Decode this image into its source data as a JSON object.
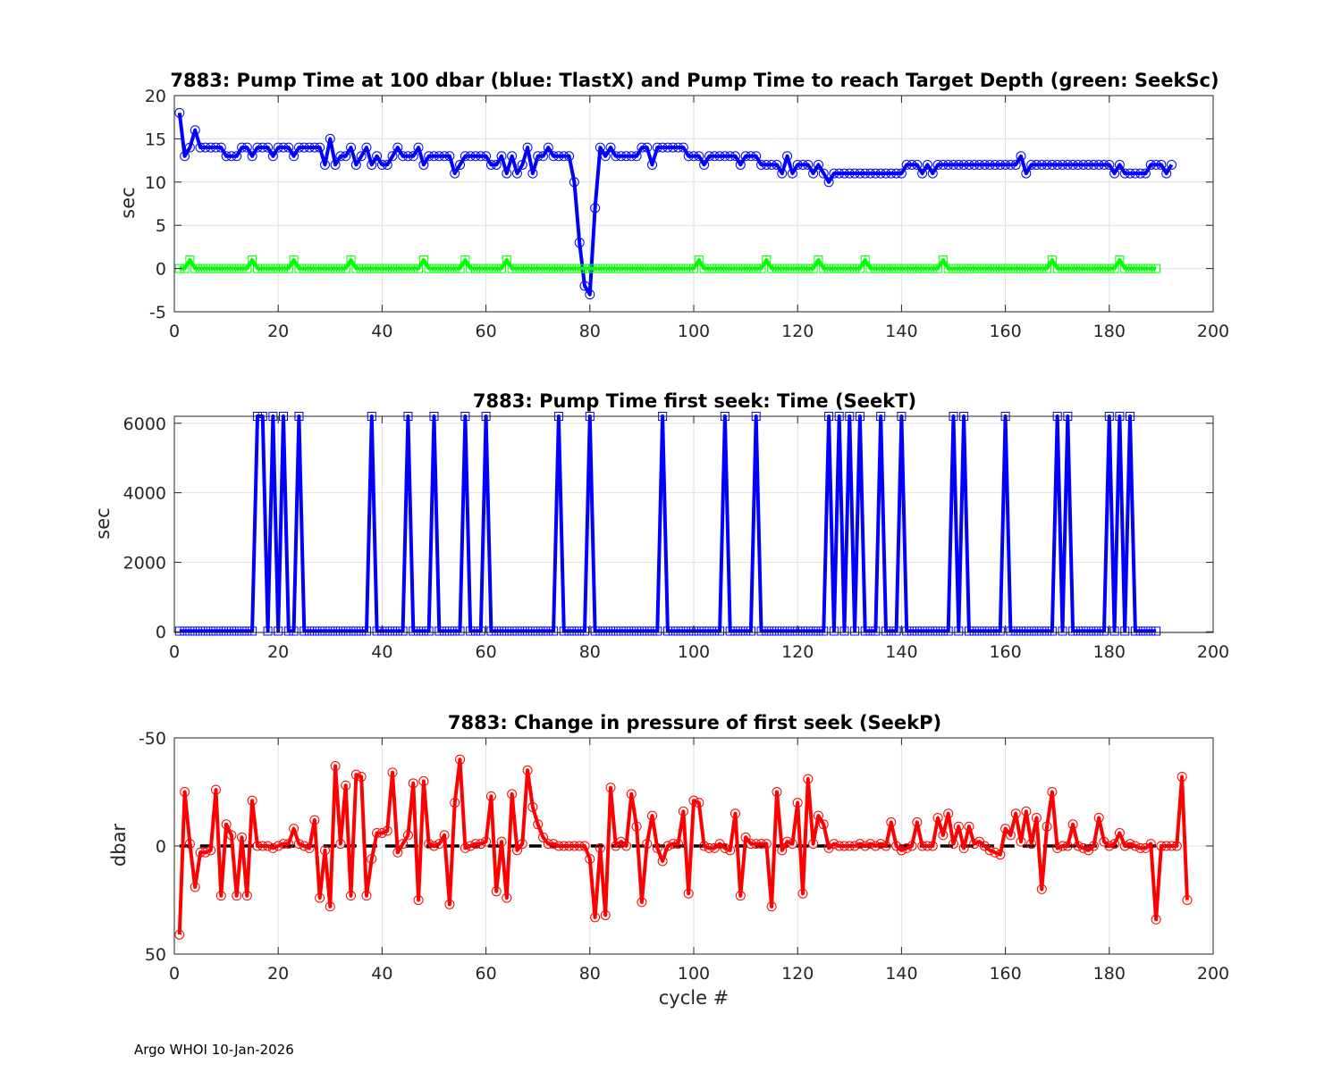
{
  "footer": {
    "text": "Argo WHOI 10-Jan-2026"
  },
  "colors": {
    "blue": "#0000ff",
    "green": "#00ff00",
    "red": "#ff0000",
    "black": "#000000",
    "grid": "#e0e0e0",
    "axis": "#262626"
  },
  "chart_data": [
    {
      "id": "pump",
      "type": "line",
      "title": "7883:  Pump Time at 100 dbar (blue: TlastX) and Pump Time to reach Target Depth (green: SeekSc)",
      "xlabel": "",
      "ylabel": "sec",
      "xlim": [
        0,
        200
      ],
      "ylim": [
        -5,
        20
      ],
      "xticks": [
        0,
        20,
        40,
        60,
        80,
        100,
        120,
        140,
        160,
        180,
        200
      ],
      "yticks": [
        -5,
        0,
        5,
        10,
        15,
        20
      ],
      "y_reversed": false,
      "grid": true,
      "series": [
        {
          "name": "TlastX",
          "color": "blue",
          "marker": "circle",
          "x_start": 1,
          "values": [
            18,
            13,
            14,
            16,
            14,
            14,
            14,
            14,
            14,
            13,
            13,
            13,
            14,
            14,
            13,
            14,
            14,
            14,
            13,
            14,
            14,
            14,
            13,
            14,
            14,
            14,
            14,
            14,
            12,
            15,
            12,
            13,
            13,
            14,
            12,
            13,
            14,
            12,
            13,
            12,
            12,
            13,
            14,
            13,
            13,
            13,
            14,
            12,
            13,
            13,
            13,
            13,
            13,
            11,
            12,
            13,
            13,
            13,
            13,
            13,
            12,
            12,
            13,
            11,
            13,
            11,
            12,
            14,
            11,
            13,
            13,
            14,
            13,
            13,
            13,
            13,
            10,
            3,
            -2,
            -3,
            7,
            14,
            13,
            14,
            13,
            13,
            13,
            13,
            13,
            14,
            14,
            12,
            14,
            14,
            14,
            14,
            14,
            14,
            13,
            13,
            13,
            12,
            13,
            13,
            13,
            13,
            13,
            13,
            12,
            13,
            13,
            13,
            12,
            12,
            12,
            12,
            11,
            13,
            11,
            12,
            12,
            12,
            11,
            12,
            11,
            10,
            11,
            11,
            11,
            11,
            11,
            11,
            11,
            11,
            11,
            11,
            11,
            11,
            11,
            11,
            12,
            12,
            12,
            11,
            12,
            11,
            12,
            12,
            12,
            12,
            12,
            12,
            12,
            12,
            12,
            12,
            12,
            12,
            12,
            12,
            12,
            12,
            13,
            11,
            12,
            12,
            12,
            12,
            12,
            12,
            12,
            12,
            12,
            12,
            12,
            12,
            12,
            12,
            12,
            12,
            11,
            12,
            11,
            11,
            11,
            11,
            11,
            12,
            12,
            12,
            11,
            12
          ]
        },
        {
          "name": "SeekSc",
          "color": "green",
          "marker": "square",
          "x_start": 1,
          "values": [
            0,
            0,
            1,
            0,
            0,
            0,
            0,
            0,
            0,
            0,
            0,
            0,
            0,
            0,
            1,
            0,
            0,
            0,
            0,
            0,
            0,
            0,
            1,
            0,
            0,
            0,
            0,
            0,
            0,
            0,
            0,
            0,
            0,
            1,
            0,
            0,
            0,
            0,
            0,
            0,
            0,
            0,
            0,
            0,
            0,
            0,
            0,
            1,
            0,
            0,
            0,
            0,
            0,
            0,
            0,
            1,
            0,
            0,
            0,
            0,
            0,
            0,
            0,
            1,
            0,
            0,
            0,
            0,
            0,
            0,
            0,
            0,
            0,
            0,
            0,
            0,
            0,
            0,
            0,
            0,
            0,
            0,
            0,
            0,
            0,
            0,
            0,
            0,
            0,
            0,
            0,
            0,
            0,
            0,
            0,
            0,
            0,
            0,
            0,
            0,
            1,
            0,
            0,
            0,
            0,
            0,
            0,
            0,
            0,
            0,
            0,
            0,
            0,
            1,
            0,
            0,
            0,
            0,
            0,
            0,
            0,
            0,
            0,
            1,
            0,
            0,
            0,
            0,
            0,
            0,
            0,
            0,
            1,
            0,
            0,
            0,
            0,
            0,
            0,
            0,
            0,
            0,
            0,
            0,
            0,
            0,
            0,
            1,
            0,
            0,
            0,
            0,
            0,
            0,
            0,
            0,
            0,
            0,
            0,
            0,
            0,
            0,
            0,
            0,
            0,
            0,
            0,
            0,
            1,
            0,
            0,
            0,
            0,
            0,
            0,
            0,
            0,
            0,
            0,
            0,
            0,
            1,
            0,
            0,
            0,
            0,
            0,
            0,
            0
          ]
        }
      ]
    },
    {
      "id": "seekT",
      "type": "line",
      "title": "7883: Pump Time first seek: Time (SeekT)",
      "xlabel": "",
      "ylabel": "sec",
      "xlim": [
        0,
        200
      ],
      "ylim": [
        -20,
        6200
      ],
      "xticks": [
        0,
        20,
        40,
        60,
        80,
        100,
        120,
        140,
        160,
        180,
        200
      ],
      "yticks": [
        0,
        2000,
        4000,
        6000
      ],
      "y_reversed": false,
      "grid": true,
      "series": [
        {
          "name": "SeekT",
          "color": "blue",
          "marker": "square",
          "x_start": 1,
          "spike_value": 6200,
          "base_value": 20,
          "spike_cycles": [
            16,
            17,
            19,
            21,
            24,
            38,
            45,
            50,
            56,
            60,
            74,
            80,
            94,
            106,
            112,
            126,
            128,
            130,
            132,
            136,
            140,
            150,
            152,
            160,
            170,
            172,
            180,
            182,
            184
          ]
        }
      ]
    },
    {
      "id": "seekP",
      "type": "line",
      "title": "7883: Change in pressure of first seek (SeekP)",
      "xlabel": "cycle #",
      "ylabel": "dbar",
      "xlim": [
        0,
        200
      ],
      "ylim": [
        50,
        -50
      ],
      "xticks": [
        0,
        20,
        40,
        60,
        80,
        100,
        120,
        140,
        160,
        180,
        200
      ],
      "yticks": [
        -50,
        0,
        50
      ],
      "y_reversed": true,
      "grid": true,
      "reference_line": {
        "y": 0,
        "x_range": [
          1,
          189
        ],
        "color": "black",
        "style": "dashed"
      },
      "series": [
        {
          "name": "SeekP",
          "color": "red",
          "marker": "circle",
          "x_start": 1,
          "values": [
            41,
            -25,
            -1,
            19,
            3,
            3,
            2,
            -26,
            23,
            -10,
            -5,
            23,
            -4,
            23,
            -21,
            0,
            0,
            0,
            1,
            0,
            -1,
            -1,
            -8,
            -1,
            0,
            1,
            -12,
            24,
            2,
            28,
            -37,
            -1,
            -28,
            23,
            -33,
            -32,
            23,
            6,
            -6,
            -6,
            -7,
            -34,
            3,
            -1,
            -5,
            -29,
            25,
            -30,
            -1,
            0,
            -1,
            -5,
            27,
            -20,
            -40,
            1,
            0,
            -1,
            -1,
            -2,
            -23,
            21,
            -2,
            24,
            -24,
            2,
            -1,
            -35,
            -18,
            -10,
            -4,
            -1,
            -1,
            0,
            0,
            0,
            0,
            0,
            0,
            6,
            33,
            1,
            32,
            -27,
            0,
            -2,
            0,
            -24,
            -9,
            26,
            -1,
            -14,
            1,
            7,
            0,
            -1,
            -1,
            -16,
            22,
            -21,
            -20,
            0,
            1,
            1,
            -1,
            1,
            2,
            -15,
            23,
            -4,
            -1,
            -1,
            -1,
            -1,
            28,
            -25,
            2,
            -2,
            -1,
            -20,
            22,
            -31,
            -1,
            -14,
            -10,
            1,
            -1,
            0,
            0,
            0,
            0,
            -1,
            0,
            -1,
            0,
            -1,
            0,
            -11,
            0,
            2,
            1,
            0,
            -11,
            0,
            0,
            0,
            -13,
            -5,
            -15,
            -1,
            -9,
            1,
            -9,
            -1,
            -2,
            0,
            2,
            3,
            4,
            -8,
            -5,
            -15,
            -2,
            -16,
            -1,
            -13,
            20,
            -9,
            -25,
            1,
            0,
            0,
            -10,
            0,
            1,
            2,
            0,
            -13,
            -2,
            0,
            -1,
            -6,
            0,
            -1,
            0,
            1,
            1,
            -1,
            34,
            0,
            0,
            0,
            0,
            -32,
            25
          ]
        }
      ]
    }
  ]
}
